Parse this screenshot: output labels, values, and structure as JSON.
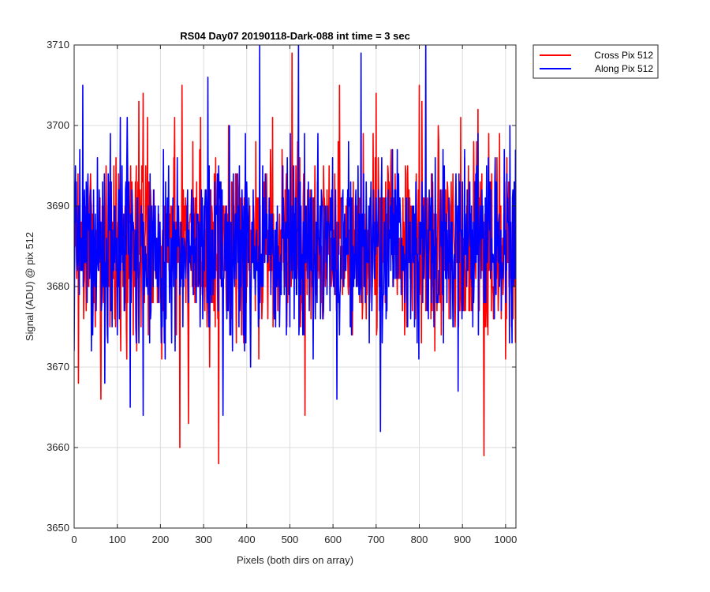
{
  "chart_data": {
    "type": "line",
    "title": "RS04 Day07 20190118-Dark-088 int time = 3 sec",
    "xlabel": "Pixels (both dirs on array)",
    "ylabel": "Signal (ADU) @ pix 512",
    "xlim": [
      0,
      1024
    ],
    "ylim": [
      3650,
      3710
    ],
    "xticks": [
      0,
      100,
      200,
      300,
      400,
      500,
      600,
      700,
      800,
      900,
      1000
    ],
    "yticks": [
      3650,
      3660,
      3670,
      3680,
      3690,
      3700,
      3710
    ],
    "grid": true,
    "legend_position": "outside-top-right",
    "noise_model": {
      "n_points": 1024,
      "baseline": 3685,
      "typical_range": [
        3673,
        3697
      ],
      "extreme_range": [
        3658,
        3710
      ]
    },
    "series": [
      {
        "name": "Cross Pix 512",
        "color": "#ff0000",
        "notable_points": [
          {
            "x": 0,
            "y": 3693
          },
          {
            "x": 10,
            "y": 3668
          },
          {
            "x": 62,
            "y": 3666
          },
          {
            "x": 150,
            "y": 3703
          },
          {
            "x": 160,
            "y": 3704
          },
          {
            "x": 245,
            "y": 3660
          },
          {
            "x": 250,
            "y": 3705
          },
          {
            "x": 265,
            "y": 3663
          },
          {
            "x": 335,
            "y": 3658
          },
          {
            "x": 460,
            "y": 3701
          },
          {
            "x": 505,
            "y": 3709
          },
          {
            "x": 535,
            "y": 3664
          },
          {
            "x": 615,
            "y": 3705
          },
          {
            "x": 700,
            "y": 3704
          },
          {
            "x": 800,
            "y": 3705
          },
          {
            "x": 950,
            "y": 3659
          },
          {
            "x": 1024,
            "y": 3673
          }
        ]
      },
      {
        "name": "Along Pix 512",
        "color": "#0000ff",
        "notable_points": [
          {
            "x": 0,
            "y": 3672
          },
          {
            "x": 20,
            "y": 3705
          },
          {
            "x": 130,
            "y": 3665
          },
          {
            "x": 160,
            "y": 3664
          },
          {
            "x": 310,
            "y": 3706
          },
          {
            "x": 345,
            "y": 3664
          },
          {
            "x": 430,
            "y": 3710
          },
          {
            "x": 520,
            "y": 3710
          },
          {
            "x": 665,
            "y": 3709
          },
          {
            "x": 710,
            "y": 3662
          },
          {
            "x": 815,
            "y": 3710
          },
          {
            "x": 890,
            "y": 3667
          },
          {
            "x": 1024,
            "y": 3697
          }
        ]
      }
    ]
  }
}
